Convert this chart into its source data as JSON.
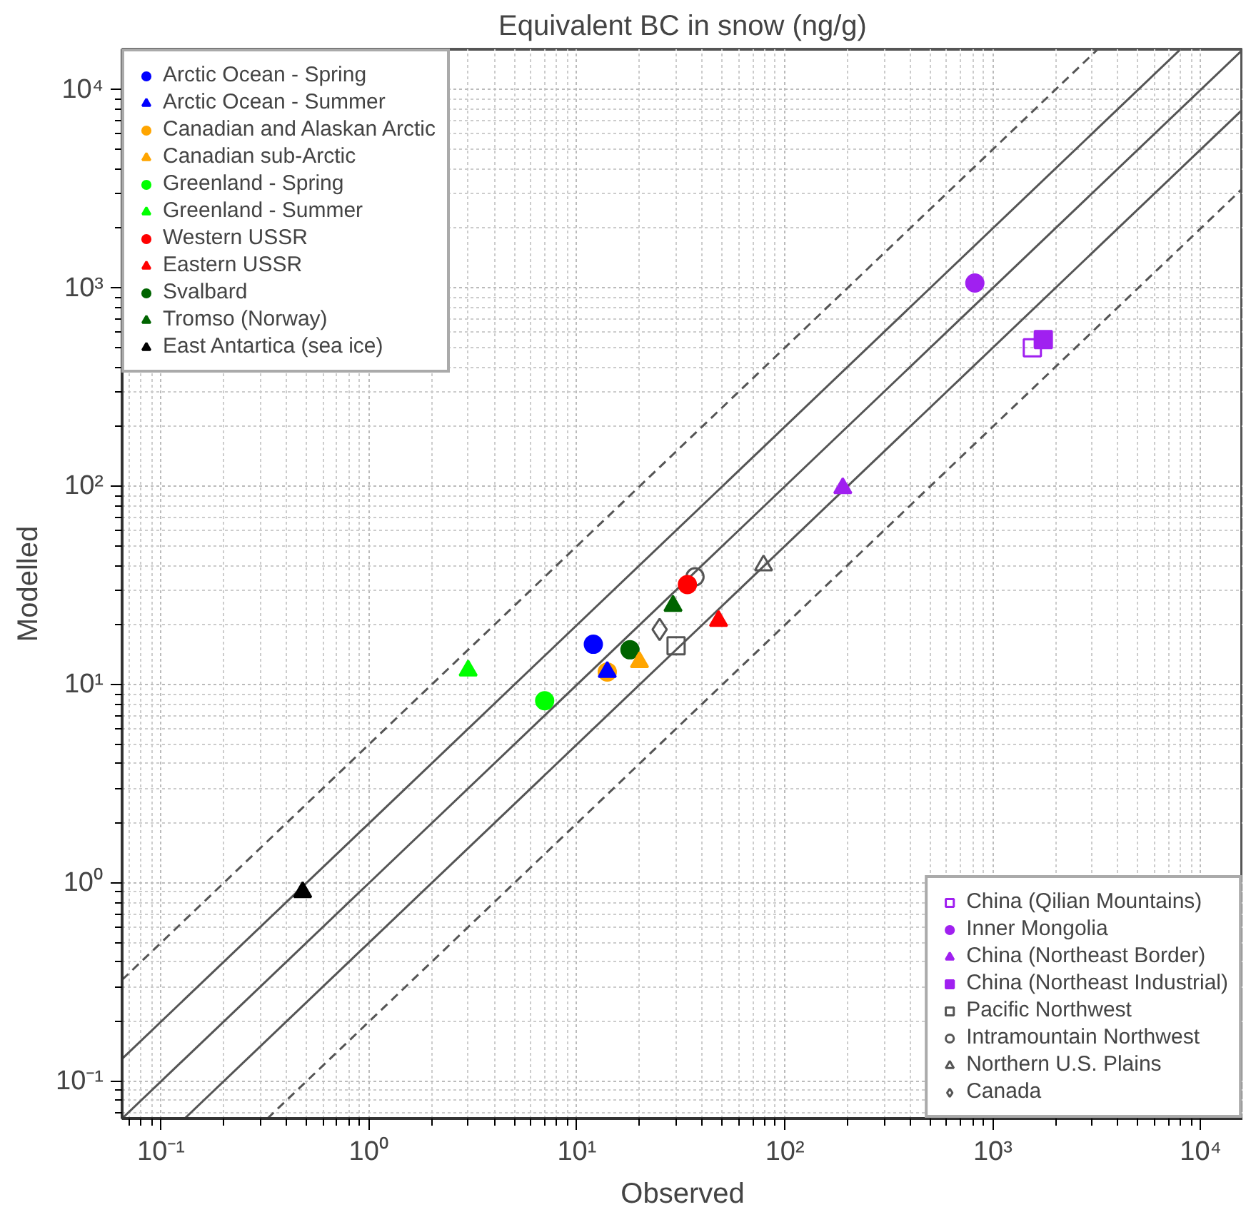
{
  "chart_data": {
    "type": "scatter",
    "title": "Equivalent BC in snow (ng/g)",
    "xlabel": "Observed",
    "ylabel": "Modelled",
    "log": "xy",
    "grid": true,
    "legend": "top left",
    "xlim": [
      0.065,
      16000
    ],
    "ylim": [
      0.065,
      16000
    ],
    "xticks": [
      {
        "value": 0.1,
        "label": "10⁻¹"
      },
      {
        "value": 1,
        "label": "10⁰"
      },
      {
        "value": 10,
        "label": "10¹"
      },
      {
        "value": 100,
        "label": "10²"
      },
      {
        "value": 1000,
        "label": "10³"
      },
      {
        "value": 10000,
        "label": "10⁴"
      }
    ],
    "yticks": [
      {
        "value": 0.1,
        "label": "10⁻¹"
      },
      {
        "value": 1,
        "label": "10⁰"
      },
      {
        "value": 10,
        "label": "10¹"
      },
      {
        "value": 100,
        "label": "10²"
      },
      {
        "value": 1000,
        "label": "10³"
      },
      {
        "value": 10000,
        "label": "10⁴"
      }
    ],
    "series": [
      {
        "name": "Arctic Ocean - Spring",
        "color": "#0000ff",
        "marker": "circle",
        "x": [
          12
        ],
        "values": [
          16
        ]
      },
      {
        "name": "Arctic Ocean - Summer",
        "color": "#0000ff",
        "marker": "triangle",
        "x": [
          14
        ],
        "values": [
          11.6
        ]
      },
      {
        "name": "Canadian and Alaskan Arctic",
        "color": "#ffa500",
        "marker": "circle",
        "x": [
          14
        ],
        "values": [
          11.6
        ]
      },
      {
        "name": "Canadian sub-Arctic",
        "color": "#ffa500",
        "marker": "triangle",
        "x": [
          20
        ],
        "values": [
          13
        ]
      },
      {
        "name": "Greenland - Spring",
        "color": "#00ff00",
        "marker": "circle",
        "x": [
          7
        ],
        "values": [
          8.3
        ]
      },
      {
        "name": "Greenland - Summer",
        "color": "#00ff00",
        "marker": "triangle",
        "x": [
          3
        ],
        "values": [
          11.8
        ]
      },
      {
        "name": "Western USSR",
        "color": "#ff0000",
        "marker": "circle",
        "x": [
          34
        ],
        "values": [
          32
        ]
      },
      {
        "name": "Eastern USSR",
        "color": "#ff0000",
        "marker": "triangle",
        "x": [
          48
        ],
        "values": [
          21
        ]
      },
      {
        "name": "Svalbard",
        "color": "#006400",
        "marker": "circle",
        "x": [
          18
        ],
        "values": [
          15
        ]
      },
      {
        "name": "Tromso (Norway)",
        "color": "#006400",
        "marker": "triangle",
        "x": [
          29
        ],
        "values": [
          25
        ]
      },
      {
        "name": "East Antartica (sea ice)",
        "color": "#000000",
        "marker": "triangle",
        "x": [
          0.48
        ],
        "values": [
          0.9
        ]
      },
      {
        "name": "China (Qilian Mountains)",
        "color": "#a020f0",
        "marker": "square_open",
        "x": [
          1550
        ],
        "values": [
          500
        ]
      },
      {
        "name": "Inner Mongolia",
        "color": "#a020f0",
        "marker": "circle",
        "x": [
          820
        ],
        "values": [
          1060
        ]
      },
      {
        "name": "China (Northeast Border)",
        "color": "#a020f0",
        "marker": "triangle",
        "x": [
          190
        ],
        "values": [
          98
        ]
      },
      {
        "name": "China (Northeast Industrial)",
        "color": "#a020f0",
        "marker": "square",
        "x": [
          1750
        ],
        "values": [
          550
        ]
      },
      {
        "name": "Pacific Northwest",
        "color": "#555555",
        "marker": "square_open",
        "x": [
          30
        ],
        "values": [
          15.7
        ]
      },
      {
        "name": "Intramountain Northwest",
        "color": "#555555",
        "marker": "circle_open",
        "x": [
          37
        ],
        "values": [
          35
        ]
      },
      {
        "name": "Northern U.S. Plains",
        "color": "#555555",
        "marker": "triangle_open",
        "x": [
          79
        ],
        "values": [
          40
        ]
      },
      {
        "name": "Canada",
        "color": "#555555",
        "marker": "diamond_open",
        "x": [
          25
        ],
        "values": [
          19
        ]
      },
      {
        "type": "line",
        "color": "#555555",
        "line_style": "solid",
        "x": [
          0.065,
          16000
        ],
        "values": [
          0.065,
          16000
        ]
      },
      {
        "type": "line",
        "color": "#555555",
        "line_style": "solid",
        "x": [
          0.065,
          8000
        ],
        "values": [
          0.13,
          16000
        ]
      },
      {
        "type": "line",
        "color": "#555555",
        "line_style": "solid",
        "x": [
          0.13,
          16000
        ],
        "values": [
          0.065,
          8000
        ]
      },
      {
        "type": "line",
        "color": "#555555",
        "line_style": "dashed",
        "x": [
          0.065,
          3200
        ],
        "values": [
          0.325,
          16000
        ]
      },
      {
        "type": "line",
        "color": "#555555",
        "line_style": "dashed",
        "x": [
          0.325,
          16000
        ],
        "values": [
          0.065,
          3200
        ]
      }
    ]
  }
}
